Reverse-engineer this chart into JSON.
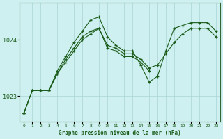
{
  "title": "Graphe pression niveau de la mer (hPa)",
  "background_color": "#cff0f0",
  "grid_color": "#aad4d4",
  "line_color": "#1a5c1a",
  "xlim": [
    -0.5,
    23.5
  ],
  "ylim": [
    1022.55,
    1024.65
  ],
  "xticks": [
    0,
    1,
    2,
    3,
    4,
    5,
    6,
    7,
    8,
    9,
    10,
    11,
    12,
    13,
    14,
    15,
    16,
    17,
    18,
    19,
    20,
    21,
    22,
    23
  ],
  "yticks": [
    1023,
    1024
  ],
  "series": [
    {
      "x": [
        0,
        1,
        2,
        3,
        4,
        5,
        6,
        7,
        8,
        9,
        10,
        11,
        12,
        13,
        14,
        15,
        16,
        17,
        18,
        19,
        20,
        21,
        22,
        23
      ],
      "y": [
        1022.7,
        1023.1,
        1023.1,
        1023.1,
        1023.4,
        1023.65,
        1023.85,
        1024.05,
        1024.15,
        1024.2,
        1023.9,
        1023.85,
        1023.75,
        1023.75,
        1023.65,
        1023.5,
        1023.55,
        1023.75,
        1023.95,
        1024.1,
        1024.2,
        1024.2,
        1024.2,
        1024.05
      ]
    },
    {
      "x": [
        0,
        1,
        2,
        3,
        4,
        5,
        6,
        7,
        8,
        9,
        10,
        11,
        12,
        13,
        14,
        15,
        16,
        17,
        18,
        19,
        20,
        21,
        22,
        23
      ],
      "y": [
        1022.7,
        1023.1,
        1023.1,
        1023.1,
        1023.45,
        1023.7,
        1023.95,
        1024.15,
        1024.35,
        1024.4,
        1024.05,
        1023.9,
        1023.8,
        1023.8,
        1023.55,
        1023.25,
        1023.35,
        1023.8,
        1024.2,
        1024.25,
        1024.3,
        1024.3,
        1024.3,
        1024.15
      ]
    },
    {
      "x": [
        0,
        1,
        2,
        3,
        4,
        5,
        6,
        7,
        8,
        9,
        10,
        11,
        12,
        13,
        14,
        15
      ],
      "y": [
        1022.7,
        1023.1,
        1023.1,
        1023.1,
        1023.4,
        1023.6,
        1023.8,
        1024.0,
        1024.1,
        1024.2,
        1023.85,
        1023.8,
        1023.7,
        1023.7,
        1023.6,
        1023.45
      ]
    }
  ]
}
